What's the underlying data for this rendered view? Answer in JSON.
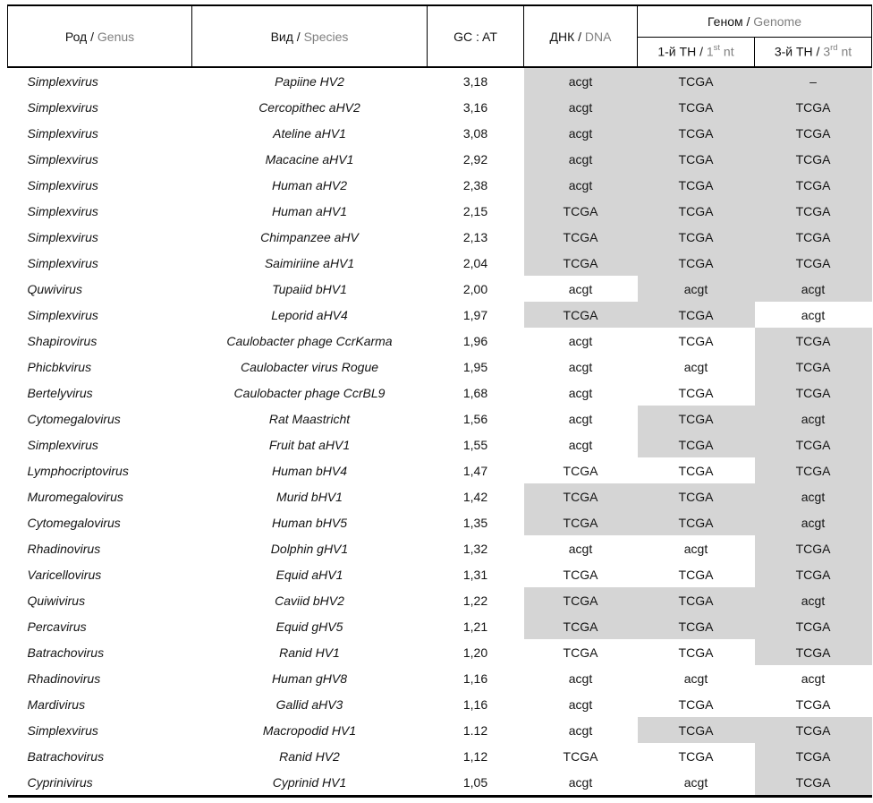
{
  "table": {
    "headers": {
      "genus_ru": "Род / ",
      "genus_en": "Genus",
      "species_ru": "Вид / ",
      "species_en": "Species",
      "gc": "GC : AT",
      "dna_ru": "ДНК / ",
      "dna_en": "DNA",
      "genome_ru": "Геном / ",
      "genome_en": "Genome",
      "nt1_ru": "1-й ТН / ",
      "nt1_en_base": "1",
      "nt1_en_sup": "st",
      "nt1_en_rest": " nt",
      "nt3_ru": "3-й ТН / ",
      "nt3_en_base": "3",
      "nt3_en_sup": "rd",
      "nt3_en_rest": " nt"
    },
    "shade_color": "#d5d5d5",
    "rows": [
      {
        "genus": "Simplexvirus",
        "species": "Papiine HV2",
        "gc": "3,18",
        "dna": "acgt",
        "nt1": "TCGA",
        "nt3": "–",
        "dna_s": true,
        "nt1_s": true,
        "nt3_s": true
      },
      {
        "genus": "Simplexvirus",
        "species": "Cercopithec aHV2",
        "gc": "3,16",
        "dna": "acgt",
        "nt1": "TCGA",
        "nt3": "TCGA",
        "dna_s": true,
        "nt1_s": true,
        "nt3_s": true
      },
      {
        "genus": "Simplexvirus",
        "species": "Ateline aHV1",
        "gc": "3,08",
        "dna": "acgt",
        "nt1": "TCGA",
        "nt3": "TCGA",
        "dna_s": true,
        "nt1_s": true,
        "nt3_s": true
      },
      {
        "genus": "Simplexvirus",
        "species": "Macacine aHV1",
        "gc": "2,92",
        "dna": "acgt",
        "nt1": "TCGA",
        "nt3": "TCGA",
        "dna_s": true,
        "nt1_s": true,
        "nt3_s": true
      },
      {
        "genus": "Simplexvirus",
        "species": "Human aHV2",
        "gc": "2,38",
        "dna": "acgt",
        "nt1": "TCGA",
        "nt3": "TCGA",
        "dna_s": true,
        "nt1_s": true,
        "nt3_s": true
      },
      {
        "genus": "Simplexvirus",
        "species": "Human aHV1",
        "gc": "2,15",
        "dna": "TCGA",
        "nt1": "TCGA",
        "nt3": "TCGA",
        "dna_s": true,
        "nt1_s": true,
        "nt3_s": true
      },
      {
        "genus": "Simplexvirus",
        "species": "Chimpanzee aHV",
        "gc": "2,13",
        "dna": "TCGA",
        "nt1": "TCGA",
        "nt3": "TCGA",
        "dna_s": true,
        "nt1_s": true,
        "nt3_s": true
      },
      {
        "genus": "Simplexvirus",
        "species": "Saimiriine aHV1",
        "gc": "2,04",
        "dna": "TCGA",
        "nt1": "TCGA",
        "nt3": "TCGA",
        "dna_s": true,
        "nt1_s": true,
        "nt3_s": true
      },
      {
        "genus": "Quwivirus",
        "species": "Tupaiid bHV1",
        "gc": "2,00",
        "dna": "acgt",
        "nt1": "acgt",
        "nt3": "acgt",
        "dna_s": false,
        "nt1_s": true,
        "nt3_s": true
      },
      {
        "genus": "Simplexvirus",
        "species": "Leporid aHV4",
        "gc": "1,97",
        "dna": "TCGA",
        "nt1": "TCGA",
        "nt3": "acgt",
        "dna_s": true,
        "nt1_s": true,
        "nt3_s": false
      },
      {
        "genus": "Shapirovirus",
        "species": "Caulobacter phage CcrKarma",
        "gc": "1,96",
        "dna": "acgt",
        "nt1": "TCGA",
        "nt3": "TCGA",
        "dna_s": false,
        "nt1_s": false,
        "nt3_s": true
      },
      {
        "genus": "Phicbkvirus",
        "species": "Caulobacter virus Rogue",
        "gc": "1,95",
        "dna": "acgt",
        "nt1": "acgt",
        "nt3": "TCGA",
        "dna_s": false,
        "nt1_s": false,
        "nt3_s": true
      },
      {
        "genus": "Bertelyvirus",
        "species": "Caulobacter phage CcrBL9",
        "gc": "1,68",
        "dna": "acgt",
        "nt1": "TCGA",
        "nt3": "TCGA",
        "dna_s": false,
        "nt1_s": false,
        "nt3_s": true
      },
      {
        "genus": "Cytomegalovirus",
        "species": "Rat Maastricht",
        "gc": "1,56",
        "dna": "acgt",
        "nt1": "TCGA",
        "nt3": "acgt",
        "dna_s": false,
        "nt1_s": true,
        "nt3_s": true
      },
      {
        "genus": "Simplexvirus",
        "species": "Fruit bat aHV1",
        "gc": "1,55",
        "dna": "acgt",
        "nt1": "TCGA",
        "nt3": "TCGA",
        "dna_s": false,
        "nt1_s": true,
        "nt3_s": true
      },
      {
        "genus": "Lymphocriptovirus",
        "species": "Human bHV4",
        "gc": "1,47",
        "dna": "TCGA",
        "nt1": "TCGA",
        "nt3": "TCGA",
        "dna_s": false,
        "nt1_s": false,
        "nt3_s": true
      },
      {
        "genus": "Muromegalovirus",
        "species": "Murid bHV1",
        "gc": "1,42",
        "dna": "TCGA",
        "nt1": "TCGA",
        "nt3": "acgt",
        "dna_s": true,
        "nt1_s": true,
        "nt3_s": true
      },
      {
        "genus": "Cytomegalovirus",
        "species": "Human bHV5",
        "gc": "1,35",
        "dna": "TCGA",
        "nt1": "TCGA",
        "nt3": "acgt",
        "dna_s": true,
        "nt1_s": true,
        "nt3_s": true
      },
      {
        "genus": "Rhadinovirus",
        "species": "Dolphin gHV1",
        "gc": "1,32",
        "dna": "acgt",
        "nt1": "acgt",
        "nt3": "TCGA",
        "dna_s": false,
        "nt1_s": false,
        "nt3_s": true
      },
      {
        "genus": "Varicellovirus",
        "species": "Equid aHV1",
        "gc": "1,31",
        "dna": "TCGA",
        "nt1": "TCGA",
        "nt3": "TCGA",
        "dna_s": false,
        "nt1_s": false,
        "nt3_s": true
      },
      {
        "genus": "Quiwivirus",
        "species": "Caviid bHV2",
        "gc": "1,22",
        "dna": "TCGA",
        "nt1": "TCGA",
        "nt3": "acgt",
        "dna_s": true,
        "nt1_s": true,
        "nt3_s": true
      },
      {
        "genus": "Percavirus",
        "species": "Equid gHV5",
        "gc": "1,21",
        "dna": "TCGA",
        "nt1": "TCGA",
        "nt3": "TCGA",
        "dna_s": true,
        "nt1_s": true,
        "nt3_s": true
      },
      {
        "genus": "Batrachovirus",
        "species": "Ranid HV1",
        "gc": "1,20",
        "dna": "TCGA",
        "nt1": "TCGA",
        "nt3": "TCGA",
        "dna_s": false,
        "nt1_s": false,
        "nt3_s": true
      },
      {
        "genus": "Rhadinovirus",
        "species": "Human gHV8",
        "gc": "1,16",
        "dna": "acgt",
        "nt1": "acgt",
        "nt3": "acgt",
        "dna_s": false,
        "nt1_s": false,
        "nt3_s": false
      },
      {
        "genus": "Mardivirus",
        "species": "Gallid aHV3",
        "gc": "1,16",
        "dna": "acgt",
        "nt1": "TCGA",
        "nt3": "TCGA",
        "dna_s": false,
        "nt1_s": false,
        "nt3_s": false
      },
      {
        "genus": "Simplexvirus",
        "species": "Macropodid HV1",
        "gc": "1.12",
        "dna": "acgt",
        "nt1": "TCGA",
        "nt3": "TCGA",
        "dna_s": false,
        "nt1_s": true,
        "nt3_s": true
      },
      {
        "genus": "Batrachovirus",
        "species": "Ranid HV2",
        "gc": "1,12",
        "dna": "TCGA",
        "nt1": "TCGA",
        "nt3": "TCGA",
        "dna_s": false,
        "nt1_s": false,
        "nt3_s": true
      },
      {
        "genus": "Cyprinivirus",
        "species": "Cyprinid HV1",
        "gc": "1,05",
        "dna": "acgt",
        "nt1": "acgt",
        "nt3": "TCGA",
        "dna_s": false,
        "nt1_s": false,
        "nt3_s": true
      }
    ]
  }
}
